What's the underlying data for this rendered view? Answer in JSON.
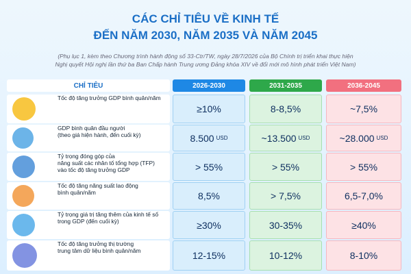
{
  "header": {
    "title": [
      "CÁC CHỈ TIÊU VỀ KINH TẾ",
      "ĐẾN NĂM 2030, NĂM 2035 VÀ NĂM 2045"
    ],
    "subtitle": [
      "(Phụ lục 1, kèm theo Chương trình hành động số 33-Ctr/TW, ngày 28/7/2026 của Bộ Chính trị triển khai thực hiện",
      "Nghị quyết Hội nghị lần thứ ba Ban Chấp hành Trung ương Đảng khóa XIV về đổi mới mô hình phát triển Việt Nam)"
    ]
  },
  "table": {
    "columns": [
      "CHỈ TIÊU",
      "2026-2030",
      "2031-2035",
      "2036-2045"
    ],
    "rows": [
      {
        "label": [
          "Tốc độ tăng trưởng GDP bình quân/năm"
        ],
        "values": [
          [
            "≥10%"
          ],
          [
            "8-8,5%"
          ],
          [
            "~7,5%"
          ]
        ]
      },
      {
        "label": [
          "GDP bình quân đầu người",
          "(theo giá hiện hành, đến cuối kỳ)"
        ],
        "values": [
          [
            "8.500",
            "USD"
          ],
          [
            "~13.500",
            "USD"
          ],
          [
            "~28.000",
            "USD"
          ]
        ]
      },
      {
        "label": [
          "Tỷ trọng đóng góp của",
          "năng suất các nhân tố tổng hợp (TFP)",
          "vào tốc độ tăng trưởng GDP"
        ],
        "values": [
          [
            "> 55%"
          ],
          [
            "> 55%"
          ],
          [
            "> 55%"
          ]
        ]
      },
      {
        "label": [
          "Tốc độ tăng năng suất lao động",
          "bình quân/năm"
        ],
        "values": [
          [
            "8,5%"
          ],
          [
            "> 7,5%"
          ],
          [
            "6,5-7,0%"
          ]
        ]
      },
      {
        "label": [
          "Tỷ trọng giá trị tăng thêm của kinh tế số",
          "trong GDP (đến cuối kỳ)"
        ],
        "values": [
          [
            "≥30%"
          ],
          [
            "30-35%"
          ],
          [
            "≥40%"
          ]
        ]
      },
      {
        "label": [
          "Tốc độ tăng trưởng thị trường",
          "trung tâm dữ liệu bình quân/năm"
        ],
        "values": [
          [
            "12-15%"
          ],
          [
            "10-12%"
          ],
          [
            "8-10%"
          ]
        ]
      }
    ]
  }
}
